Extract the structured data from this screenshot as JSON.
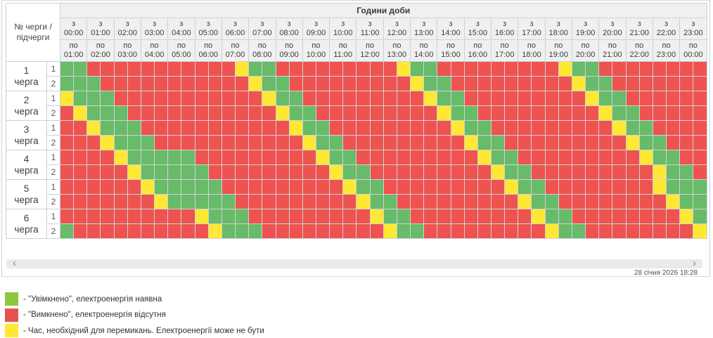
{
  "header": {
    "corner": "№ черги /\nпідчерги",
    "hours_title": "Години доби",
    "from_prefix": "з",
    "to_prefix": "по",
    "hours": [
      {
        "from": "00:00",
        "to": "01:00"
      },
      {
        "from": "01:00",
        "to": "02:00"
      },
      {
        "from": "02:00",
        "to": "03:00"
      },
      {
        "from": "03:00",
        "to": "04:00"
      },
      {
        "from": "04:00",
        "to": "05:00"
      },
      {
        "from": "05:00",
        "to": "06:00"
      },
      {
        "from": "06:00",
        "to": "07:00"
      },
      {
        "from": "07:00",
        "to": "08:00"
      },
      {
        "from": "08:00",
        "to": "09:00"
      },
      {
        "from": "09:00",
        "to": "10:00"
      },
      {
        "from": "10:00",
        "to": "11:00"
      },
      {
        "from": "11:00",
        "to": "12:00"
      },
      {
        "from": "12:00",
        "to": "13:00"
      },
      {
        "from": "13:00",
        "to": "14:00"
      },
      {
        "from": "14:00",
        "to": "15:00"
      },
      {
        "from": "15:00",
        "to": "16:00"
      },
      {
        "from": "16:00",
        "to": "17:00"
      },
      {
        "from": "17:00",
        "to": "18:00"
      },
      {
        "from": "18:00",
        "to": "19:00"
      },
      {
        "from": "19:00",
        "to": "20:00"
      },
      {
        "from": "20:00",
        "to": "21:00"
      },
      {
        "from": "21:00",
        "to": "22:00"
      },
      {
        "from": "22:00",
        "to": "23:00"
      },
      {
        "from": "23:00",
        "to": "00:00"
      }
    ]
  },
  "colors": {
    "on": "#68bb68",
    "off": "#ee534f",
    "switch": "#ffe834",
    "grid_line": "#c9d2d8"
  },
  "queues": [
    {
      "number": "1",
      "word": "черга",
      "sub": [
        {
          "name": "1",
          "cells": "GGRRRRRRRRRRRYGGRRRRRRRRRYGGRRRRRRRRRYGGRRRRRRRR"
        },
        {
          "name": "2",
          "cells": "GGGRRRRRRRRRRRYGGRRRRRRRRRYGGRRRRRRRRRYGGRRRRRRR"
        }
      ]
    },
    {
      "number": "2",
      "word": "черга",
      "sub": [
        {
          "name": "1",
          "cells": "YGGGRRRRRRRRRRRYGGRRRRRRRRRYGGRRRRRRRRRYGGRRRRRR"
        },
        {
          "name": "2",
          "cells": "RYGGGRRRRRRRRRRRYGGRRRRRRRRRYGGRRRRRRRRRYGGRRRRR"
        }
      ]
    },
    {
      "number": "3",
      "word": "черга",
      "sub": [
        {
          "name": "1",
          "cells": "RRYGGGRRRRRRRRRRRYGGRRRRRRRRRYGGRRRRRRRRRYGGRRRR"
        },
        {
          "name": "2",
          "cells": "RRRYGGGRRRRRRRRRRRYGGRRRRRRRRRYGGRRRRRRRRRYGGRRR"
        }
      ]
    },
    {
      "number": "4",
      "word": "черга",
      "sub": [
        {
          "name": "1",
          "cells": "RRRRYGGGGGRRRRRRRRRYGGRRRRRRRRRYGGRRRRRRRRRYGGRR"
        },
        {
          "name": "2",
          "cells": "RRRRRYGGGGGRRRRRRRRRYGGRRRRRRRRRYGGRRRRRRRRRYGGR"
        }
      ]
    },
    {
      "number": "5",
      "word": "черга",
      "sub": [
        {
          "name": "1",
          "cells": "RRRRRRYGGGGGRRRRRRRRRYGGRRRRRRRRRYGGRRRRRRRRYGGG"
        },
        {
          "name": "2",
          "cells": "RRRRRRRYGGGGGRRRRRRRRRYGGRRRRRRRRRYGGRRRRRRRRYGG"
        }
      ]
    },
    {
      "number": "6",
      "word": "черга",
      "sub": [
        {
          "name": "1",
          "cells": "RRRRRRRRRRYGGGRRRRRRRRRYGGRRRRRRRRRYGGRRRRRRRRYG"
        },
        {
          "name": "2",
          "cells": "GRRRRRRRRRRYGGGRRRRRRRRRYGGRRRRRRRRRYGGRRRRRRRRY"
        }
      ]
    }
  ],
  "scrollbar": {
    "left_icon": "‹",
    "right_icon": "›"
  },
  "footer": {
    "timestamp": "28 січня 2026 18:28"
  },
  "legend": [
    {
      "color": "#8fc63e",
      "text": "- \"Увімкнено\", електроенергія наявна"
    },
    {
      "color": "#e8524e",
      "text": "- \"Вимкнено\", електроенергія відсутня"
    },
    {
      "color": "#ffe834",
      "text": "- Час, необхідний для перемикань. Електроенергії може не бути"
    }
  ]
}
